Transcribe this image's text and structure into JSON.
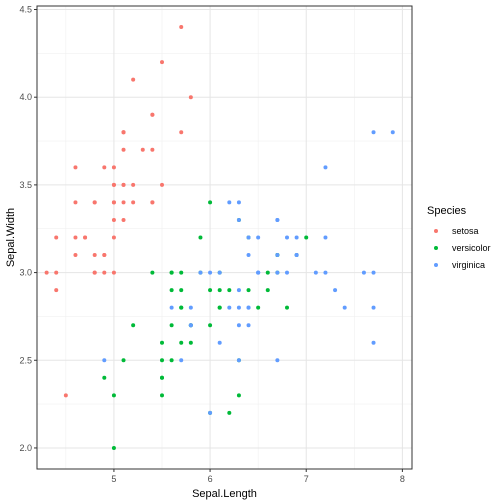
{
  "chart_data": {
    "type": "scatter",
    "xlabel": "Sepal.Length",
    "ylabel": "Sepal.Width",
    "xlim": [
      4.2,
      8.1
    ],
    "ylim": [
      1.88,
      4.52
    ],
    "x_ticks": [
      5,
      6,
      7,
      8
    ],
    "x_tick_labels": [
      "5",
      "6",
      "7",
      "8"
    ],
    "y_ticks": [
      2.0,
      2.5,
      3.0,
      3.5,
      4.0,
      4.5
    ],
    "y_tick_labels": [
      "2.0",
      "2.5",
      "3.0",
      "3.5",
      "4.0",
      "4.5"
    ],
    "grid": true,
    "legend": {
      "title": "Species",
      "placement": "right"
    },
    "series": [
      {
        "name": "setosa",
        "color": "#F8766D",
        "points": [
          [
            5.1,
            3.5
          ],
          [
            4.9,
            3.0
          ],
          [
            4.7,
            3.2
          ],
          [
            4.6,
            3.1
          ],
          [
            5.0,
            3.6
          ],
          [
            5.4,
            3.9
          ],
          [
            4.6,
            3.4
          ],
          [
            5.0,
            3.4
          ],
          [
            4.4,
            2.9
          ],
          [
            4.9,
            3.1
          ],
          [
            5.4,
            3.7
          ],
          [
            4.8,
            3.4
          ],
          [
            4.8,
            3.0
          ],
          [
            4.3,
            3.0
          ],
          [
            5.8,
            4.0
          ],
          [
            5.7,
            4.4
          ],
          [
            5.4,
            3.9
          ],
          [
            5.1,
            3.5
          ],
          [
            5.7,
            3.8
          ],
          [
            5.1,
            3.8
          ],
          [
            5.4,
            3.4
          ],
          [
            5.1,
            3.7
          ],
          [
            4.6,
            3.6
          ],
          [
            5.1,
            3.3
          ],
          [
            4.8,
            3.4
          ],
          [
            5.0,
            3.0
          ],
          [
            5.0,
            3.4
          ],
          [
            5.2,
            3.5
          ],
          [
            5.2,
            3.4
          ],
          [
            4.7,
            3.2
          ],
          [
            4.8,
            3.1
          ],
          [
            5.4,
            3.4
          ],
          [
            5.2,
            4.1
          ],
          [
            5.5,
            4.2
          ],
          [
            4.9,
            3.1
          ],
          [
            5.0,
            3.2
          ],
          [
            5.5,
            3.5
          ],
          [
            4.9,
            3.6
          ],
          [
            4.4,
            3.0
          ],
          [
            5.1,
            3.4
          ],
          [
            5.0,
            3.5
          ],
          [
            4.5,
            2.3
          ],
          [
            4.4,
            3.2
          ],
          [
            5.0,
            3.5
          ],
          [
            5.1,
            3.8
          ],
          [
            4.8,
            3.0
          ],
          [
            5.1,
            3.8
          ],
          [
            4.6,
            3.2
          ],
          [
            5.3,
            3.7
          ],
          [
            5.0,
            3.3
          ]
        ]
      },
      {
        "name": "versicolor",
        "color": "#00BA38",
        "points": [
          [
            7.0,
            3.2
          ],
          [
            6.4,
            3.2
          ],
          [
            6.9,
            3.1
          ],
          [
            5.5,
            2.3
          ],
          [
            6.5,
            2.8
          ],
          [
            5.7,
            2.8
          ],
          [
            6.3,
            3.3
          ],
          [
            4.9,
            2.4
          ],
          [
            6.6,
            2.9
          ],
          [
            5.2,
            2.7
          ],
          [
            5.0,
            2.0
          ],
          [
            5.9,
            3.0
          ],
          [
            6.0,
            2.2
          ],
          [
            6.1,
            2.9
          ],
          [
            5.6,
            2.9
          ],
          [
            6.7,
            3.1
          ],
          [
            5.6,
            3.0
          ],
          [
            5.8,
            2.7
          ],
          [
            6.2,
            2.2
          ],
          [
            5.6,
            2.5
          ],
          [
            5.9,
            3.2
          ],
          [
            6.1,
            2.8
          ],
          [
            6.3,
            2.5
          ],
          [
            6.1,
            2.8
          ],
          [
            6.4,
            2.9
          ],
          [
            6.6,
            3.0
          ],
          [
            6.8,
            2.8
          ],
          [
            6.7,
            3.0
          ],
          [
            6.0,
            2.9
          ],
          [
            5.7,
            2.6
          ],
          [
            5.5,
            2.4
          ],
          [
            5.5,
            2.4
          ],
          [
            5.8,
            2.7
          ],
          [
            6.0,
            2.7
          ],
          [
            5.4,
            3.0
          ],
          [
            6.0,
            3.4
          ],
          [
            6.7,
            3.1
          ],
          [
            6.3,
            2.3
          ],
          [
            5.6,
            3.0
          ],
          [
            5.5,
            2.5
          ],
          [
            5.5,
            2.6
          ],
          [
            6.1,
            3.0
          ],
          [
            5.8,
            2.6
          ],
          [
            5.0,
            2.3
          ],
          [
            5.6,
            2.7
          ],
          [
            5.7,
            3.0
          ],
          [
            5.7,
            2.9
          ],
          [
            6.2,
            2.9
          ],
          [
            5.1,
            2.5
          ],
          [
            5.7,
            2.8
          ]
        ]
      },
      {
        "name": "virginica",
        "color": "#619CFF",
        "points": [
          [
            6.3,
            3.3
          ],
          [
            5.8,
            2.7
          ],
          [
            7.1,
            3.0
          ],
          [
            6.3,
            2.9
          ],
          [
            6.5,
            3.0
          ],
          [
            7.6,
            3.0
          ],
          [
            4.9,
            2.5
          ],
          [
            7.3,
            2.9
          ],
          [
            6.7,
            2.5
          ],
          [
            7.2,
            3.6
          ],
          [
            6.5,
            3.2
          ],
          [
            6.4,
            2.7
          ],
          [
            6.8,
            3.0
          ],
          [
            5.7,
            2.5
          ],
          [
            5.8,
            2.8
          ],
          [
            6.4,
            3.2
          ],
          [
            6.5,
            3.0
          ],
          [
            7.7,
            3.8
          ],
          [
            7.7,
            2.6
          ],
          [
            6.0,
            2.2
          ],
          [
            6.9,
            3.2
          ],
          [
            5.6,
            2.8
          ],
          [
            7.7,
            2.8
          ],
          [
            6.3,
            2.7
          ],
          [
            6.7,
            3.3
          ],
          [
            7.2,
            3.2
          ],
          [
            6.2,
            2.8
          ],
          [
            6.1,
            3.0
          ],
          [
            6.4,
            2.8
          ],
          [
            7.2,
            3.0
          ],
          [
            7.4,
            2.8
          ],
          [
            7.9,
            3.8
          ],
          [
            6.4,
            2.8
          ],
          [
            6.3,
            2.8
          ],
          [
            6.1,
            2.6
          ],
          [
            7.7,
            3.0
          ],
          [
            6.3,
            3.4
          ],
          [
            6.4,
            3.1
          ],
          [
            6.0,
            3.0
          ],
          [
            6.9,
            3.1
          ],
          [
            6.7,
            3.1
          ],
          [
            6.9,
            3.1
          ],
          [
            5.8,
            2.7
          ],
          [
            6.8,
            3.2
          ],
          [
            6.7,
            3.3
          ],
          [
            6.7,
            3.0
          ],
          [
            6.3,
            2.5
          ],
          [
            6.5,
            3.0
          ],
          [
            6.2,
            3.4
          ],
          [
            5.9,
            3.0
          ]
        ]
      }
    ]
  }
}
